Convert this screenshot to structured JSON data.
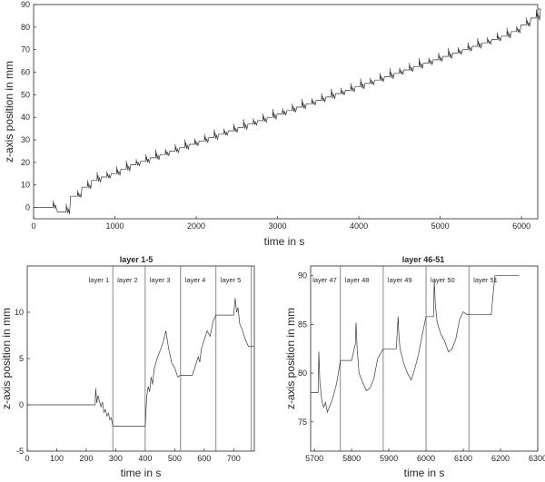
{
  "chart_data": [
    {
      "type": "line",
      "title": "",
      "xlabel": "time in s",
      "ylabel": "z-axis position in mm",
      "xlim": [
        0,
        6200
      ],
      "ylim": [
        -5,
        90
      ],
      "xticks": [
        0,
        1000,
        2000,
        3000,
        4000,
        5000,
        6000
      ],
      "yticks": [
        0,
        10,
        20,
        30,
        40,
        50,
        60,
        70,
        80,
        90
      ],
      "grid": false,
      "layer_start_times": [
        0,
        240,
        400,
        540,
        660,
        780,
        900,
        1020,
        1140,
        1260,
        1380,
        1500,
        1620,
        1740,
        1860,
        1980,
        2100,
        2220,
        2340,
        2460,
        2580,
        2700,
        2820,
        2940,
        3060,
        3180,
        3300,
        3420,
        3540,
        3660,
        3780,
        3900,
        4020,
        4140,
        4260,
        4380,
        4500,
        4620,
        4740,
        4860,
        4980,
        5100,
        5220,
        5340,
        5460,
        5580,
        5700,
        5820,
        5940,
        6060,
        6180
      ],
      "layer_levels": [
        0,
        -2,
        5,
        9,
        12,
        13.5,
        15,
        17,
        19,
        20.5,
        22,
        23.5,
        25,
        26.5,
        28,
        29.5,
        31,
        32.5,
        34,
        35.5,
        37,
        38.5,
        40,
        41.5,
        43,
        44.5,
        46,
        47.5,
        49,
        50.5,
        52,
        53.5,
        55,
        56.5,
        58,
        59.5,
        61,
        62.5,
        64,
        65.5,
        67,
        68.5,
        70,
        71.5,
        73,
        74.5,
        76,
        78,
        81,
        84,
        88
      ]
    },
    {
      "type": "line",
      "title": "layer 1-5",
      "xlabel": "time in s",
      "ylabel": "z-axis position in mm",
      "xlim": [
        0,
        770
      ],
      "ylim": [
        -5,
        15
      ],
      "xticks": [
        0,
        100,
        200,
        300,
        400,
        500,
        600,
        700
      ],
      "yticks": [
        -5,
        0,
        5,
        10
      ],
      "grid": false,
      "layer_boundaries": [
        290,
        400,
        520,
        640,
        760
      ],
      "annotations": [
        "layer 1",
        "layer 2",
        "layer 3",
        "layer 4",
        "layer 5"
      ],
      "series": [
        {
          "x": [
            0,
            230,
            232,
            236,
            240,
            245,
            250,
            255,
            260,
            265,
            270,
            275,
            280,
            285,
            290,
            400,
            405,
            410,
            415,
            420,
            425,
            430,
            440,
            450,
            460,
            470,
            480,
            490,
            500,
            510,
            520,
            560,
            580,
            585,
            590,
            600,
            610,
            620,
            630,
            640,
            700,
            705,
            710,
            715,
            720,
            730,
            740,
            750,
            760,
            770
          ],
          "y": [
            0,
            0,
            1.8,
            0.2,
            1.0,
            0.4,
            -0.2,
            0.3,
            -0.8,
            -0.5,
            -1.2,
            -0.9,
            -1.6,
            -1.4,
            -2.3,
            -2.3,
            0.8,
            2.0,
            1.4,
            3.0,
            2.2,
            3.8,
            5.0,
            5.8,
            6.7,
            8.0,
            6.0,
            4.5,
            4.0,
            3.0,
            3.2,
            3.2,
            5.2,
            4.6,
            6.0,
            7.0,
            8.0,
            7.4,
            9.0,
            9.7,
            9.7,
            11.5,
            10.0,
            10.5,
            8.8,
            8.0,
            7.0,
            6.3,
            6.3,
            6.3
          ]
        }
      ]
    },
    {
      "type": "line",
      "title": "layer 46-51",
      "xlabel": "time in s",
      "ylabel": "z-axis position in mm",
      "xlim": [
        5690,
        6300
      ],
      "ylim": [
        72,
        91
      ],
      "xticks": [
        5700,
        5800,
        5900,
        6000,
        6100,
        6200,
        6300
      ],
      "yticks": [
        75,
        80,
        85,
        90
      ],
      "grid": false,
      "layer_boundaries": [
        5770,
        5885,
        6000,
        6115
      ],
      "annotations": [
        "layer 47",
        "layer 48",
        "layer 49",
        "layer 50",
        "layer 51"
      ],
      "series": [
        {
          "x": [
            5690,
            5700,
            5710,
            5712,
            5715,
            5720,
            5725,
            5730,
            5735,
            5740,
            5750,
            5760,
            5770,
            5800,
            5810,
            5812,
            5815,
            5820,
            5830,
            5840,
            5850,
            5860,
            5870,
            5885,
            5920,
            5925,
            5927,
            5930,
            5940,
            5950,
            5960,
            5970,
            5980,
            5990,
            6000,
            6020,
            6022,
            6025,
            6030,
            6040,
            6050,
            6060,
            6070,
            6080,
            6090,
            6100,
            6110,
            6115,
            6175,
            6180,
            6185,
            6250
          ],
          "y": [
            78,
            78,
            78,
            82.2,
            79,
            77.2,
            76.5,
            77,
            76,
            76.5,
            77.5,
            79,
            81.3,
            81.3,
            83,
            85.2,
            82.5,
            80,
            79,
            78.2,
            78.5,
            79.5,
            81.5,
            82.5,
            82.5,
            85.8,
            84,
            82.5,
            81,
            80,
            79.3,
            80.5,
            82,
            84,
            85.8,
            85.8,
            89.5,
            87,
            85.2,
            84,
            83.3,
            82.2,
            82.5,
            83.5,
            85.5,
            86.3,
            86,
            86,
            86,
            88,
            90,
            90
          ]
        }
      ]
    }
  ]
}
